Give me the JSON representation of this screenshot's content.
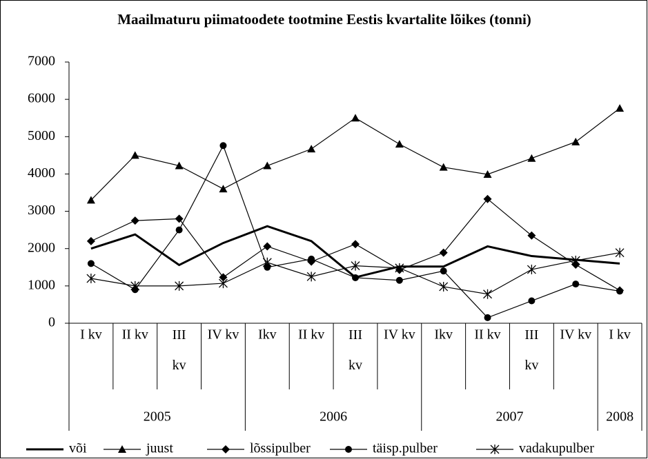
{
  "chart_data": {
    "type": "line",
    "title": "Maailmaturu piimatoodete tootmine Eestis kvartalite lõikes (tonni)",
    "category_groups": [
      {
        "name": "2005",
        "categories": [
          "I kv",
          "II kv",
          "III kv",
          "IV kv"
        ]
      },
      {
        "name": "2006",
        "categories": [
          "Ikv",
          "II kv",
          "III kv",
          "IV kv"
        ]
      },
      {
        "name": "2007",
        "categories": [
          "Ikv",
          "II kv",
          "III kv",
          "IV kv"
        ]
      },
      {
        "name": "2008",
        "categories": [
          "I kv"
        ]
      }
    ],
    "ylim": [
      0,
      7000
    ],
    "yticks": [
      0,
      1000,
      2000,
      3000,
      4000,
      5000,
      6000,
      7000
    ],
    "grid": false,
    "legend": "bottom",
    "series": [
      {
        "name": "või",
        "color": "#000000",
        "marker": "none",
        "values": [
          2000,
          2380,
          1560,
          2150,
          2600,
          2200,
          1230,
          1520,
          1520,
          2060,
          1800,
          1700,
          1600
        ]
      },
      {
        "name": "juust",
        "color": "#000000",
        "marker": "triangle",
        "values": [
          3300,
          4500,
          4220,
          3600,
          4220,
          4670,
          5500,
          4800,
          4180,
          3990,
          4420,
          4860,
          5760
        ]
      },
      {
        "name": "lõssipulber",
        "color": "#000000",
        "marker": "diamond",
        "values": [
          2200,
          2750,
          2800,
          1230,
          2060,
          1650,
          2120,
          1430,
          1890,
          3330,
          2350,
          1570,
          880
        ]
      },
      {
        "name": "täisp.pulber",
        "color": "#000000",
        "marker": "circle",
        "values": [
          1600,
          900,
          2500,
          4760,
          1500,
          1720,
          1220,
          1150,
          1400,
          150,
          600,
          1050,
          860
        ]
      },
      {
        "name": "vadakupulber",
        "color": "#000000",
        "marker": "asterisk",
        "values": [
          1200,
          1000,
          1000,
          1070,
          1630,
          1250,
          1540,
          1480,
          980,
          780,
          1440,
          1680,
          1890
        ]
      }
    ]
  }
}
